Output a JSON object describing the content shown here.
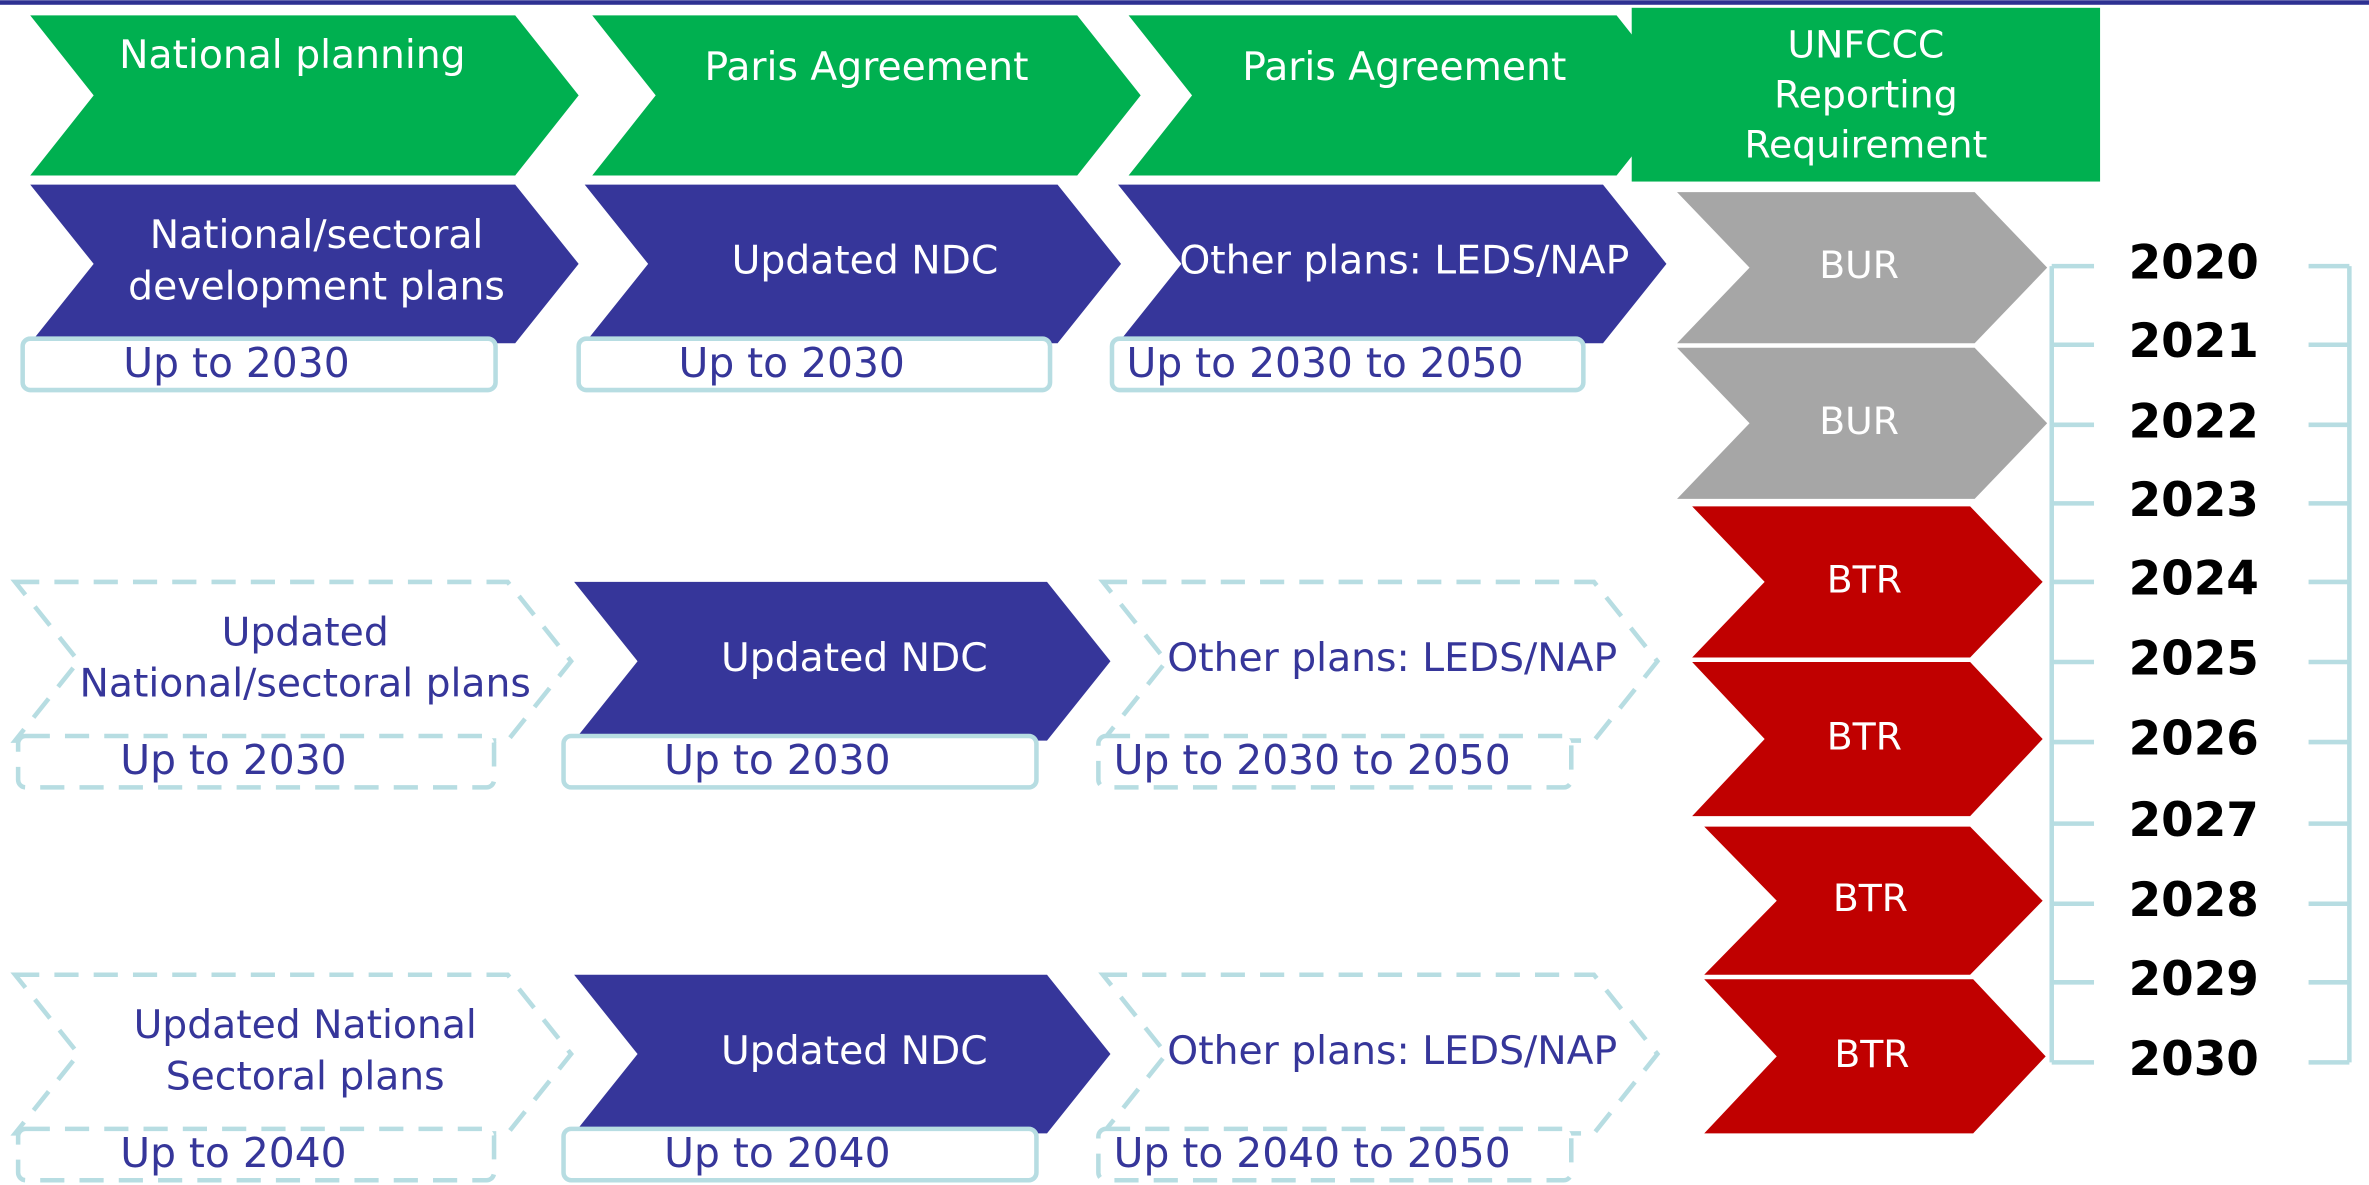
{
  "header": [
    [
      "National planning"
    ],
    [
      "Paris Agreement"
    ],
    [
      "Paris Agreement"
    ],
    [
      "UNFCCC",
      "Reporting",
      "Requirement"
    ]
  ],
  "rows": [
    {
      "plans": [
        [
          "National/sectoral",
          "development plans"
        ],
        [
          "Updated NDC"
        ],
        [
          "Other plans: LEDS/NAP"
        ]
      ],
      "horizons": [
        "Up to 2030",
        "Up to 2030",
        "Up to 2030 to 2050"
      ]
    },
    {
      "plans": [
        [
          "Updated",
          "National/sectoral plans"
        ],
        [
          "Updated NDC"
        ],
        [
          "Other plans: LEDS/NAP"
        ]
      ],
      "horizons": [
        "Up to 2030",
        "Up to 2030",
        "Up to 2030 to 2050"
      ]
    },
    {
      "plans": [
        [
          "Updated National",
          "Sectoral plans"
        ],
        [
          "Updated NDC"
        ],
        [
          "Other plans: LEDS/NAP"
        ]
      ],
      "horizons": [
        "Up to 2040",
        "Up to 2040",
        "Up to 2040 to 2050"
      ]
    }
  ],
  "reports": [
    "BUR",
    "BUR",
    "BTR",
    "BTR",
    "BTR",
    "BTR"
  ],
  "years": [
    "2020",
    "2021",
    "2022",
    "2023",
    "2024",
    "2025",
    "2026",
    "2027",
    "2028",
    "2029",
    "2030"
  ]
}
